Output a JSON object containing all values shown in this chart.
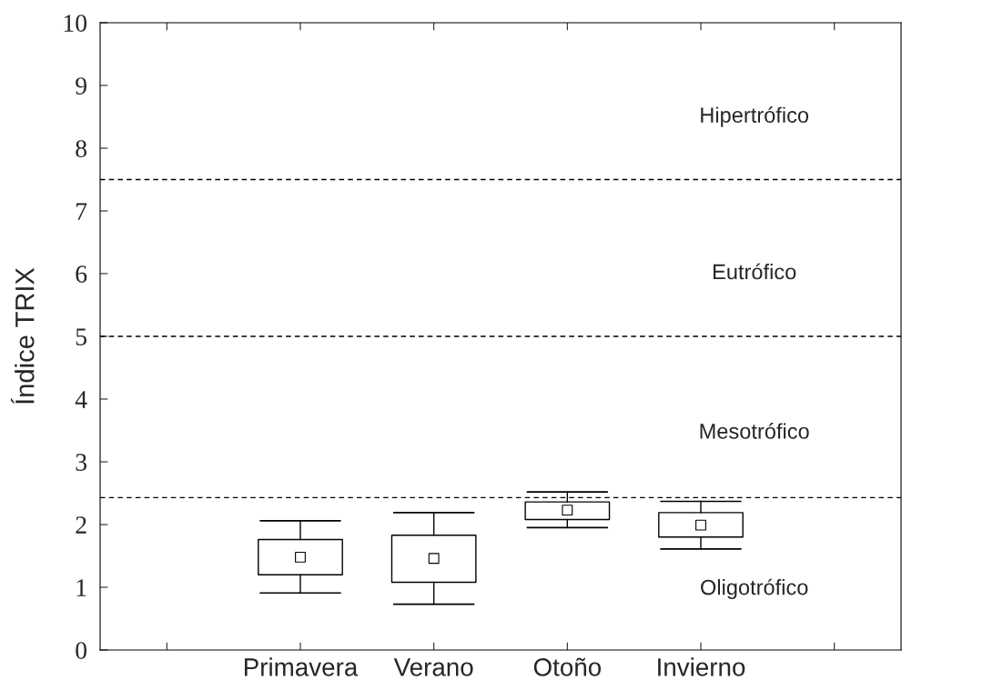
{
  "chart_data": {
    "type": "box",
    "ylabel": "Índice TRIX",
    "categories": [
      "Primavera",
      "Verano",
      "Otoño",
      "Invierno"
    ],
    "boxes": [
      {
        "low": 0.91,
        "q1": 1.2,
        "median": 1.48,
        "q3": 1.76,
        "high": 2.06
      },
      {
        "low": 0.73,
        "q1": 1.08,
        "median": 1.46,
        "q3": 1.83,
        "high": 2.19
      },
      {
        "low": 1.95,
        "q1": 2.08,
        "median": 2.23,
        "q3": 2.36,
        "high": 2.52
      },
      {
        "low": 1.61,
        "q1": 1.8,
        "median": 1.99,
        "q3": 2.19,
        "high": 2.37
      }
    ],
    "ylim": [
      0,
      10
    ],
    "yticks": [
      0,
      1,
      2,
      3,
      4,
      5,
      6,
      7,
      8,
      9,
      10
    ],
    "ref_lines": [
      {
        "axis": "y",
        "value": 2.43,
        "line_style": "dashed"
      },
      {
        "axis": "y",
        "value": 5.0,
        "line_style": "dashed"
      },
      {
        "axis": "y",
        "value": 7.5,
        "line_style": "dashed"
      }
    ],
    "annotations": [
      "Oligotrófico",
      "Mesotrófico",
      "Eutrófico",
      "Hipertrófico"
    ],
    "grid": false,
    "legend": false
  }
}
